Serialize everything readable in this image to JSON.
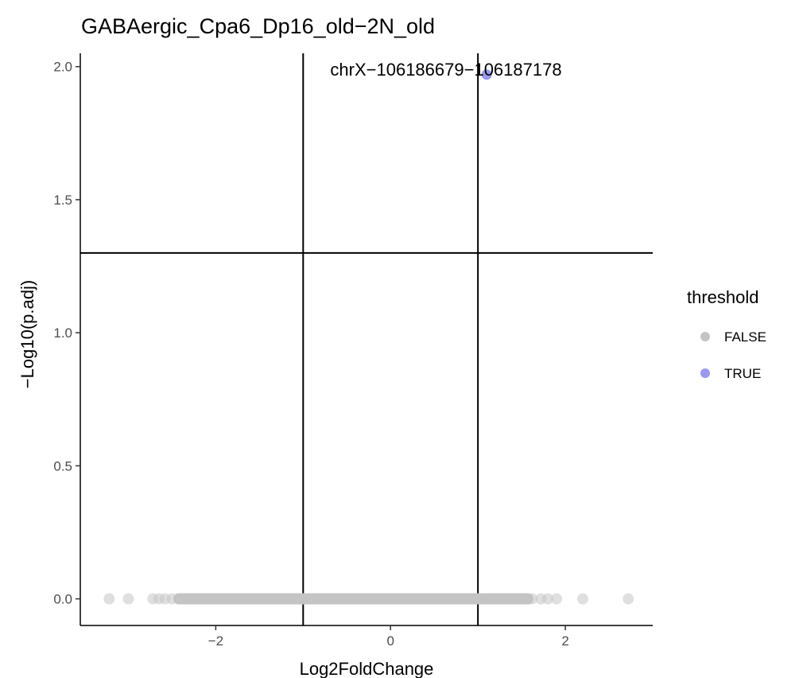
{
  "chart_data": {
    "type": "scatter",
    "title": "GABAergic_Cpa6_Dp16_old−2N_old",
    "xlabel": "Log2FoldChange",
    "ylabel": "−Log10(p.adj)",
    "xlim": [
      -3.55,
      3.0
    ],
    "ylim": [
      -0.1,
      2.05
    ],
    "x_ticks": [
      {
        "value": -2,
        "label": "−2"
      },
      {
        "value": 0,
        "label": "0"
      },
      {
        "value": 2,
        "label": "2"
      }
    ],
    "y_ticks": [
      {
        "value": 0.0,
        "label": "0.0"
      },
      {
        "value": 0.5,
        "label": "0.5"
      },
      {
        "value": 1.0,
        "label": "1.0"
      },
      {
        "value": 1.5,
        "label": "1.5"
      },
      {
        "value": 2.0,
        "label": "2.0"
      }
    ],
    "vlines": [
      -1,
      1
    ],
    "hlines": [
      1.3
    ],
    "legend": {
      "title": "threshold",
      "placement": "right",
      "entries": [
        {
          "label": "FALSE",
          "color": "#c4c4c4"
        },
        {
          "label": "TRUE",
          "color": "#9999ee"
        }
      ]
    },
    "series": [
      {
        "name": "FALSE",
        "color": "#c4c4c4",
        "points": [
          {
            "x": -3.22,
            "y": 0.0
          },
          {
            "x": -3.0,
            "y": 0.0
          },
          {
            "x": -2.72,
            "y": 0.0
          },
          {
            "x": -2.65,
            "y": 0.0
          },
          {
            "x": -2.58,
            "y": 0.0
          },
          {
            "x": -2.5,
            "y": 0.0
          },
          {
            "x": -2.42,
            "y": 0.0
          },
          {
            "x": -2.35,
            "y": 0.0
          },
          {
            "x": 1.55,
            "y": 0.0
          },
          {
            "x": 1.62,
            "y": 0.0
          },
          {
            "x": 1.72,
            "y": 0.0
          },
          {
            "x": 1.8,
            "y": 0.0
          },
          {
            "x": 1.9,
            "y": 0.0
          },
          {
            "x": 2.2,
            "y": 0.0
          },
          {
            "x": 2.72,
            "y": 0.0
          }
        ],
        "dense_band": {
          "x_from": -2.45,
          "x_to": 1.6,
          "y": 0.0
        }
      },
      {
        "name": "TRUE",
        "color": "#9999ee",
        "points": [
          {
            "x": 1.1,
            "y": 1.97,
            "label": "chrX−106186679−106187178"
          }
        ]
      }
    ]
  }
}
